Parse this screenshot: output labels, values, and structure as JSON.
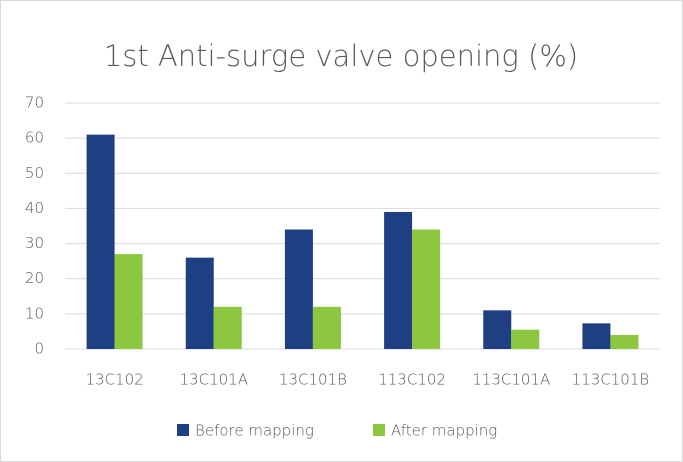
{
  "chart_data": {
    "type": "bar",
    "title": "1st Anti-surge valve opening (%)",
    "categories": [
      "13C102",
      "13C101A",
      "13C101B",
      "113C102",
      "113C101A",
      "113C101B"
    ],
    "series": [
      {
        "name": "Before mapping",
        "color": "#1f3f83",
        "values": [
          61,
          26,
          34,
          39,
          11,
          7.3
        ]
      },
      {
        "name": "After mapping",
        "color": "#8dc63f",
        "values": [
          27,
          12,
          12,
          34,
          5.5,
          4
        ]
      }
    ],
    "ylim": [
      0,
      70
    ],
    "yticks": [
      0,
      10,
      20,
      30,
      40,
      50,
      60,
      70
    ],
    "grid": true,
    "legend": "bottom"
  }
}
